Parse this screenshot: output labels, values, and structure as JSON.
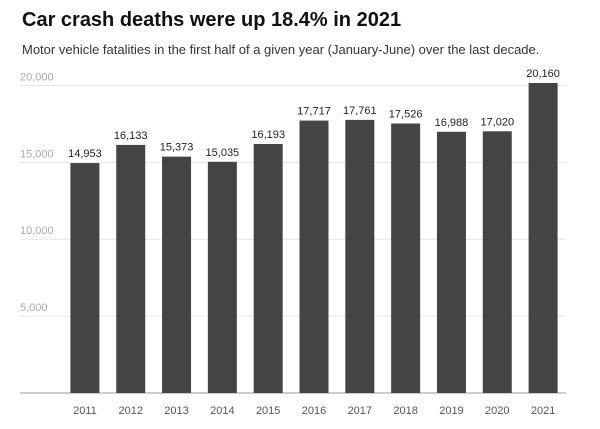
{
  "header": {
    "title": "Car crash deaths were up 18.4% in 2021",
    "subtitle": "Motor vehicle fatalities in the first half of a given year (January-June) over the last decade."
  },
  "colors": {
    "bar": "#444444",
    "grid": "#e6e6e6",
    "baseline": "#999999"
  },
  "chart_data": {
    "type": "bar",
    "title": "Car crash deaths were up 18.4% in 2021",
    "subtitle": "Motor vehicle fatalities in the first half of a given year (January-June) over the last decade.",
    "categories": [
      "2011",
      "2012",
      "2013",
      "2014",
      "2015",
      "2016",
      "2017",
      "2018",
      "2019",
      "2020",
      "2021"
    ],
    "values": [
      14953,
      16133,
      15373,
      15035,
      16193,
      17717,
      17761,
      17526,
      16988,
      17020,
      20160
    ],
    "data_labels": [
      "14,953",
      "16,133",
      "15,373",
      "15,035",
      "16,193",
      "17,717",
      "17,761",
      "17,526",
      "16,988",
      "17,020",
      "20,160"
    ],
    "yticks": [
      5000,
      10000,
      15000,
      20000
    ],
    "ytick_labels": [
      "5,000",
      "10,000",
      "15,000",
      "20,000"
    ],
    "ylim": [
      0,
      20160
    ],
    "grid": true,
    "legend": "none",
    "xlabel": "",
    "ylabel": ""
  }
}
